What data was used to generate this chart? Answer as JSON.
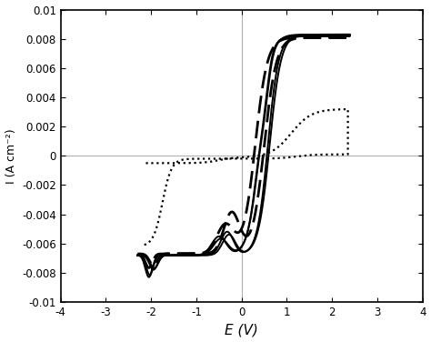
{
  "title": "",
  "xlabel": "E (V)",
  "ylabel": "I (A cm⁻²)",
  "xlim": [
    -4,
    4
  ],
  "ylim": [
    -0.01,
    0.01
  ],
  "xticks": [
    -4,
    -3,
    -2,
    -1,
    0,
    1,
    2,
    3,
    4
  ],
  "yticks": [
    -0.01,
    -0.008,
    -0.006,
    -0.004,
    -0.002,
    0,
    0.002,
    0.004,
    0.006,
    0.008,
    0.01
  ],
  "bg_color": "#ffffff",
  "line_color": "#000000",
  "axline_color": "#b0b0b0",
  "lw_solid": 1.4,
  "lw_dashed": 2.0,
  "lw_dotted": 1.6
}
